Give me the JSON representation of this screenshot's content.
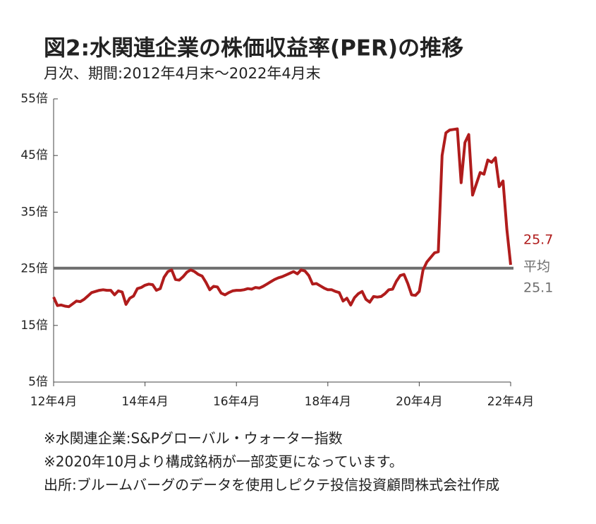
{
  "chart_data": {
    "type": "line",
    "title": "図2:水関連企業の株価収益率(PER)の推移",
    "subtitle": "月次、期間:2012年4月末～2022年4月末",
    "x": [
      "2012-04",
      "2012-05",
      "2012-06",
      "2012-07",
      "2012-08",
      "2012-09",
      "2012-10",
      "2012-11",
      "2012-12",
      "2013-01",
      "2013-02",
      "2013-03",
      "2013-04",
      "2013-05",
      "2013-06",
      "2013-07",
      "2013-08",
      "2013-09",
      "2013-10",
      "2013-11",
      "2013-12",
      "2014-01",
      "2014-02",
      "2014-03",
      "2014-04",
      "2014-05",
      "2014-06",
      "2014-07",
      "2014-08",
      "2014-09",
      "2014-10",
      "2014-11",
      "2014-12",
      "2015-01",
      "2015-02",
      "2015-03",
      "2015-04",
      "2015-05",
      "2015-06",
      "2015-07",
      "2015-08",
      "2015-09",
      "2015-10",
      "2015-11",
      "2015-12",
      "2016-01",
      "2016-02",
      "2016-03",
      "2016-04",
      "2016-05",
      "2016-06",
      "2016-07",
      "2016-08",
      "2016-09",
      "2016-10",
      "2016-11",
      "2016-12",
      "2017-01",
      "2017-02",
      "2017-03",
      "2017-04",
      "2017-05",
      "2017-06",
      "2017-07",
      "2017-08",
      "2017-09",
      "2017-10",
      "2017-11",
      "2017-12",
      "2018-01",
      "2018-02",
      "2018-03",
      "2018-04",
      "2018-05",
      "2018-06",
      "2018-07",
      "2018-08",
      "2018-09",
      "2018-10",
      "2018-11",
      "2018-12",
      "2019-01",
      "2019-02",
      "2019-03",
      "2019-04",
      "2019-05",
      "2019-06",
      "2019-07",
      "2019-08",
      "2019-09",
      "2019-10",
      "2019-11",
      "2019-12",
      "2020-01",
      "2020-02",
      "2020-03",
      "2020-04",
      "2020-05",
      "2020-06",
      "2020-07",
      "2020-08",
      "2020-09",
      "2020-10",
      "2020-11",
      "2020-12",
      "2021-01",
      "2021-02",
      "2021-03",
      "2021-04",
      "2021-05",
      "2021-06",
      "2021-07",
      "2021-08",
      "2021-09",
      "2021-10",
      "2021-11",
      "2021-12",
      "2022-01",
      "2022-02",
      "2022-03",
      "2022-04"
    ],
    "values": [
      20.0,
      18.5,
      18.6,
      18.4,
      18.3,
      18.8,
      19.3,
      19.2,
      19.6,
      20.2,
      20.8,
      21.0,
      21.2,
      21.3,
      21.2,
      21.2,
      20.4,
      21.1,
      20.9,
      18.7,
      19.8,
      20.2,
      21.5,
      21.7,
      22.1,
      22.3,
      22.2,
      21.2,
      21.5,
      23.5,
      24.5,
      24.8,
      23.1,
      23.0,
      23.6,
      24.4,
      24.8,
      24.5,
      24.0,
      23.7,
      22.6,
      21.3,
      21.9,
      21.8,
      20.7,
      20.4,
      20.8,
      21.1,
      21.2,
      21.2,
      21.3,
      21.5,
      21.4,
      21.7,
      21.6,
      21.9,
      22.3,
      22.7,
      23.1,
      23.4,
      23.6,
      23.9,
      24.2,
      24.5,
      24.1,
      24.8,
      24.6,
      23.8,
      22.3,
      22.4,
      22.0,
      21.6,
      21.3,
      21.3,
      21.0,
      20.8,
      19.3,
      19.8,
      18.6,
      19.9,
      20.6,
      21.0,
      19.6,
      19.1,
      20.1,
      20.0,
      20.1,
      20.6,
      21.3,
      21.4,
      22.8,
      23.8,
      24.0,
      22.4,
      20.4,
      20.3,
      21.0,
      24.8,
      26.2,
      27.0,
      27.8,
      28.0,
      45.0,
      49.0,
      49.5,
      49.6,
      49.7,
      40.2,
      47.3,
      48.7,
      38.0,
      40.0,
      42.0,
      41.7,
      44.2,
      43.8,
      44.6,
      39.5,
      40.5,
      32.0,
      25.7
    ],
    "color": "#b01c1c",
    "ylim": [
      5,
      55
    ],
    "yticks": [
      {
        "value": 5,
        "label": "5倍"
      },
      {
        "value": 15,
        "label": "15倍"
      },
      {
        "value": 25,
        "label": "25倍"
      },
      {
        "value": 35,
        "label": "35倍"
      },
      {
        "value": 45,
        "label": "45倍"
      },
      {
        "value": 55,
        "label": "55倍"
      }
    ],
    "xticks": [
      {
        "value": "2012-04",
        "label": "12年4月"
      },
      {
        "value": "2014-04",
        "label": "14年4月"
      },
      {
        "value": "2016-04",
        "label": "16年4月"
      },
      {
        "value": "2018-04",
        "label": "18年4月"
      },
      {
        "value": "2020-04",
        "label": "20年4月"
      },
      {
        "value": "2022-04",
        "label": "22年4月"
      }
    ],
    "reference_line": {
      "value": 25.1,
      "label": "平均",
      "color": "#6d6d6d"
    },
    "notes": [
      "※水関連企業:S&Pグローバル・ウォーター指数",
      "※2020年10月より構成銘柄が一部変更になっています。",
      "出所:ブルームバーグのデータを使用しピクテ投信投資顧問株式会社作成"
    ]
  }
}
